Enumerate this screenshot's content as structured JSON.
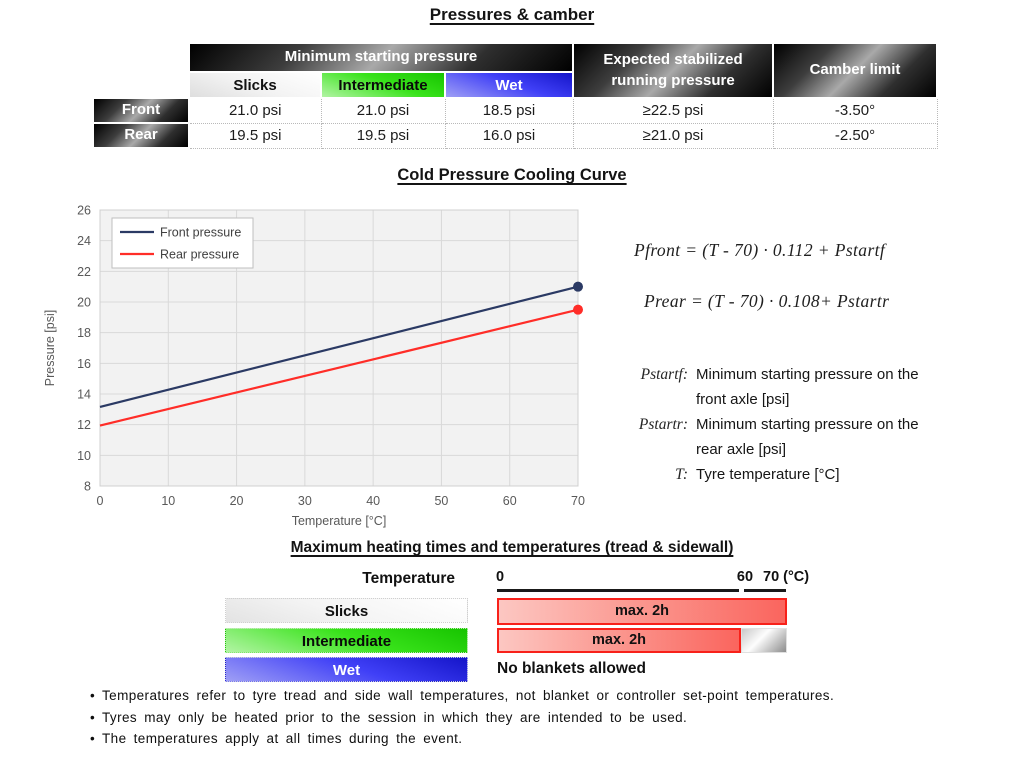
{
  "page_title": "Pressures & camber",
  "pressure_table": {
    "group_header": "Minimum starting pressure",
    "expected_header": "Expected stabilized running pressure",
    "camber_header": "Camber limit",
    "compound_headers": [
      "Slicks",
      "Intermediate",
      "Wet"
    ],
    "rows": [
      {
        "label": "Front",
        "slicks": "21.0 psi",
        "intermediate": "21.0 psi",
        "wet": "18.5 psi",
        "expected": "≥22.5 psi",
        "camber": "-3.50°"
      },
      {
        "label": "Rear",
        "slicks": "19.5 psi",
        "intermediate": "19.5 psi",
        "wet": "16.0 psi",
        "expected": "≥21.0 psi",
        "camber": "-2.50°"
      }
    ]
  },
  "chart_data": {
    "type": "line",
    "title": "Cold Pressure Cooling Curve",
    "xlabel": "Temperature [°C]",
    "ylabel": "Pressure [psi]",
    "xlim": [
      0,
      70
    ],
    "ylim": [
      8,
      26
    ],
    "x_ticks": [
      0,
      10,
      20,
      30,
      40,
      50,
      60,
      70
    ],
    "y_ticks": [
      8,
      10,
      12,
      14,
      16,
      18,
      20,
      22,
      24,
      26
    ],
    "grid": true,
    "legend_position": "top-left",
    "plot_bg": "#f2f2f2",
    "grid_color": "#d9d9d9",
    "series": [
      {
        "name": "Front pressure",
        "color": "#2B3A64",
        "x": [
          0,
          70
        ],
        "y": [
          13.16,
          21.0
        ],
        "end_marker": true
      },
      {
        "name": "Rear pressure",
        "color": "#FF2D28",
        "x": [
          0,
          70
        ],
        "y": [
          11.94,
          19.5
        ],
        "end_marker": true
      }
    ]
  },
  "formulas": {
    "front": "Pfront = (T - 70) · 0.112 + Pstartf",
    "rear": "Prear = (T - 70) · 0.108+ Pstartr",
    "definitions": [
      {
        "term": "Pstartf:",
        "text": "Minimum starting pressure on the front axle [psi]"
      },
      {
        "term": "Pstartr:",
        "text": "Minimum starting pressure on the rear axle [psi]"
      },
      {
        "term": "T:",
        "text": "Tyre temperature [°C]"
      }
    ]
  },
  "heating": {
    "title": "Maximum heating times and temperatures (tread & sidewall)",
    "axis_label": "Temperature",
    "scale_start": "0",
    "scale_mid": "60",
    "scale_end": "70 (°C)",
    "rows": [
      {
        "label": "Slicks",
        "value": "max. 2h"
      },
      {
        "label": "Intermediate",
        "value": "max. 2h"
      },
      {
        "label": "Wet",
        "value": "No blankets allowed"
      }
    ],
    "colors": {
      "bar_fill_light": "#fcc7c2",
      "bar_fill_dark": "#fa655e",
      "bar_border": "#f8211a",
      "intermediate_green": "#2ddb10",
      "wet_blue": "#2525d8"
    }
  },
  "notes": [
    "• Temperatures refer to tyre tread and side wall temperatures, not blanket or controller set-point temperatures.",
    "• Tyres may only be heated prior to the session in which they are intended to be used.",
    "• The temperatures apply at all times during the event."
  ]
}
